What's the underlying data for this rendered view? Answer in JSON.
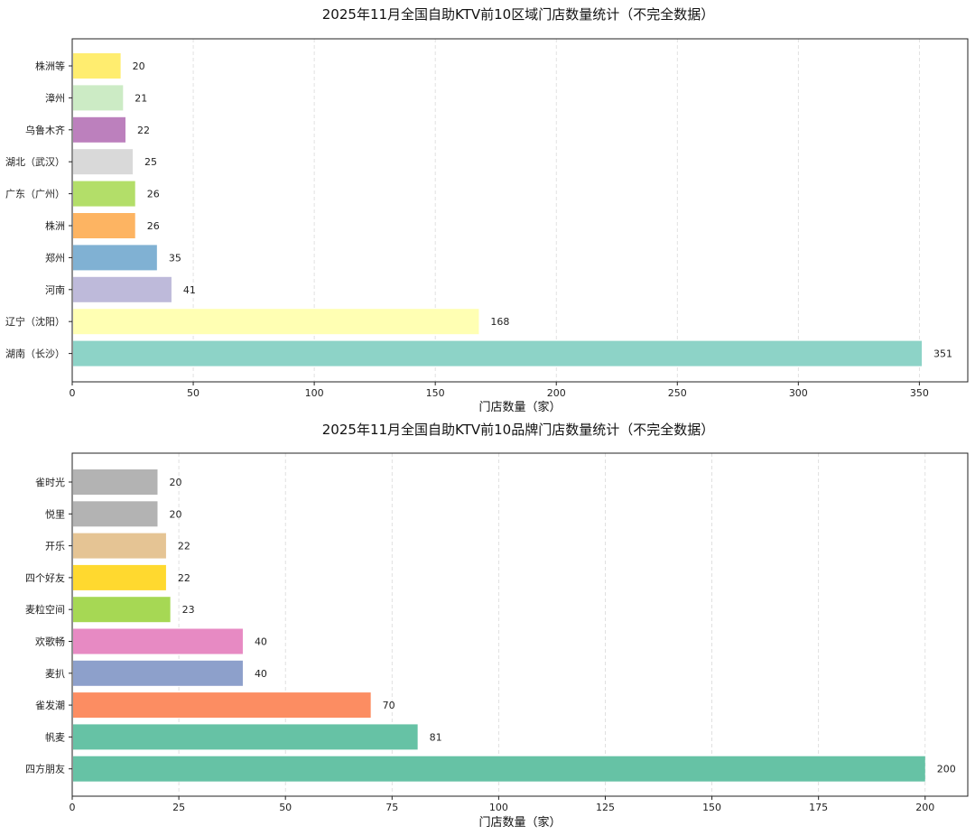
{
  "chart_data": [
    {
      "type": "bar",
      "orientation": "horizontal",
      "title": "2025年11月全国自助KTV前10区域门店数量统计（不完全数据）",
      "xlabel": "门店数量（家）",
      "ylabel": "",
      "xlim": [
        0,
        370
      ],
      "xticks": [
        0,
        50,
        100,
        150,
        200,
        250,
        300,
        350
      ],
      "grid": "x-dashed",
      "categories": [
        "株洲等",
        "漳州",
        "乌鲁木齐",
        "湖北（武汉）",
        "广东（广州）",
        "株洲",
        "郑州",
        "河南",
        "辽宁（沈阳）",
        "湖南（长沙）"
      ],
      "values": [
        20,
        21,
        22,
        25,
        26,
        26,
        35,
        41,
        168,
        351
      ],
      "colors": [
        "#ffed6f",
        "#ccebc5",
        "#bc80bd",
        "#d9d9d9",
        "#b3de69",
        "#fdb462",
        "#80b1d3",
        "#bebada",
        "#ffffb3",
        "#8dd3c7"
      ]
    },
    {
      "type": "bar",
      "orientation": "horizontal",
      "title": "2025年11月全国自助KTV前10品牌门店数量统计（不完全数据）",
      "xlabel": "门店数量（家）",
      "ylabel": "",
      "xlim": [
        0,
        210
      ],
      "xticks": [
        0,
        25,
        50,
        75,
        100,
        125,
        150,
        175,
        200
      ],
      "grid": "x-dashed",
      "categories": [
        "雀时光",
        "悦里",
        "开乐",
        "四个好友",
        "麦粒空间",
        "欢歌畅",
        "麦扒",
        "雀发潮",
        "帆麦",
        "四方朋友"
      ],
      "values": [
        20,
        20,
        22,
        22,
        23,
        40,
        40,
        70,
        81,
        200
      ],
      "colors": [
        "#b3b3b3",
        "#b3b3b3",
        "#e5c494",
        "#ffd92f",
        "#a6d854",
        "#e78ac3",
        "#8da0cb",
        "#fc8d62",
        "#66c2a5",
        "#66c2a5"
      ]
    }
  ]
}
